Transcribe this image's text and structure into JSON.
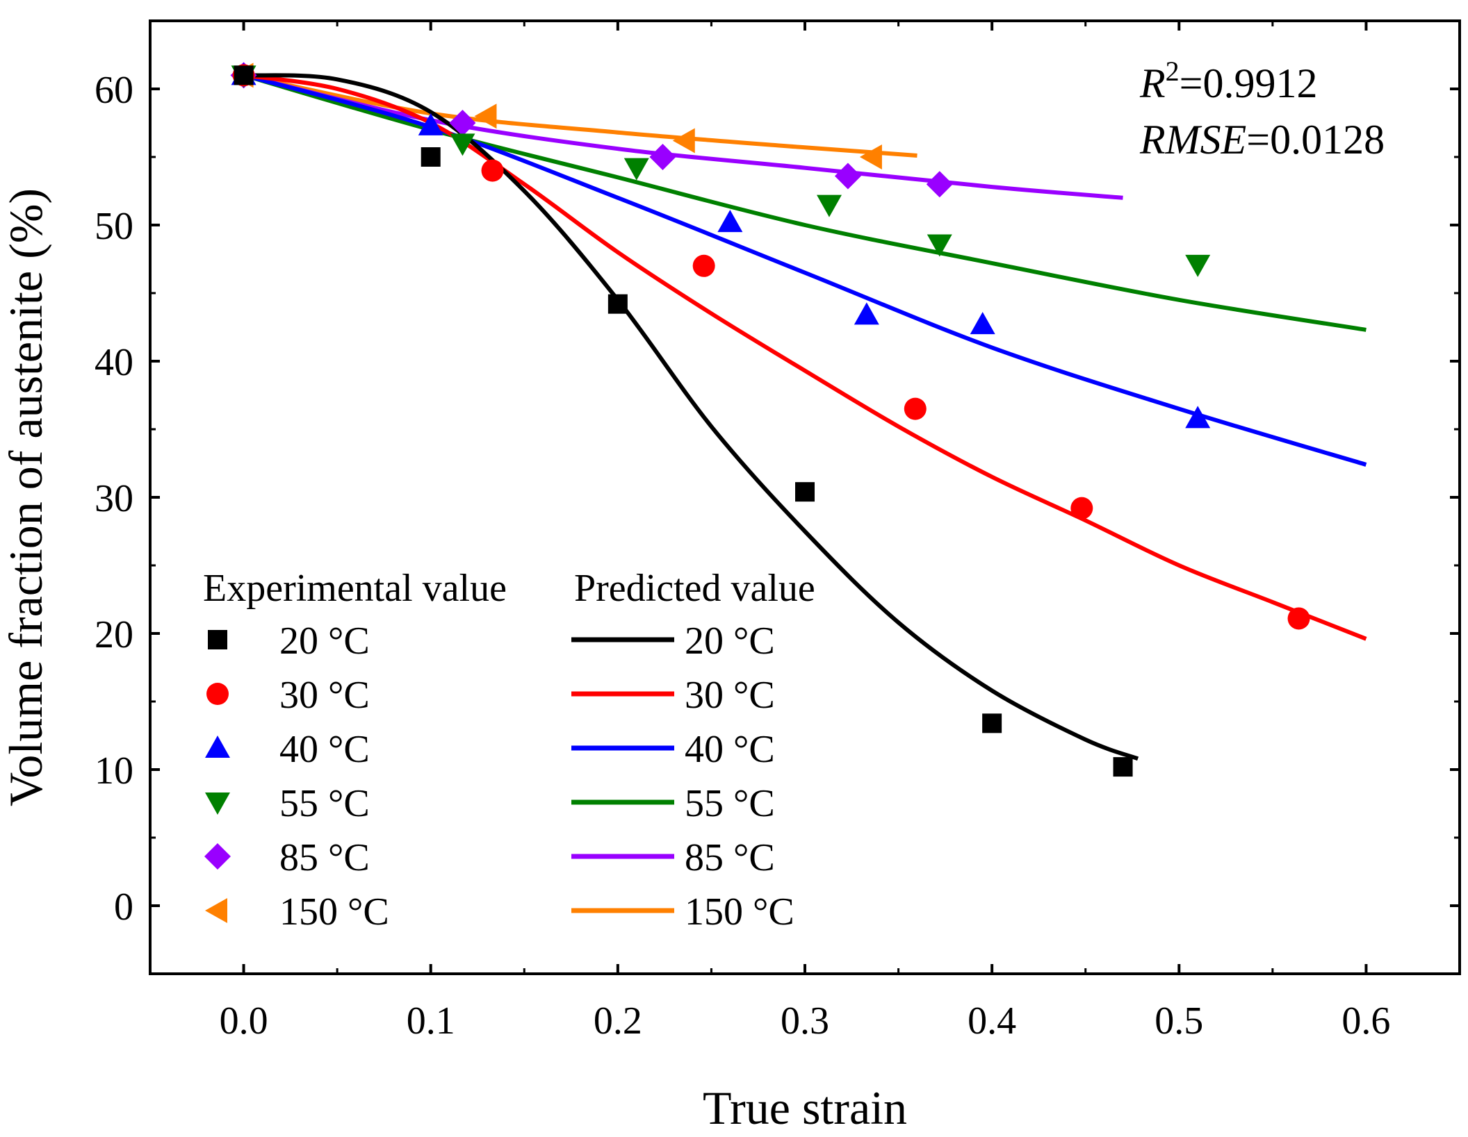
{
  "chart_data": {
    "type": "scatter",
    "xlabel": "True strain",
    "ylabel": "Volume fraction of austenite (%)",
    "xlim": [
      -0.05,
      0.65
    ],
    "ylim": [
      -5,
      65
    ],
    "x_ticks": [
      0.0,
      0.1,
      0.2,
      0.3,
      0.4,
      0.5,
      0.6
    ],
    "x_tick_labels": [
      "0.0",
      "0.1",
      "0.2",
      "0.3",
      "0.4",
      "0.5",
      "0.6"
    ],
    "y_ticks": [
      0,
      10,
      20,
      30,
      40,
      50,
      60
    ],
    "y_tick_labels": [
      "0",
      "10",
      "20",
      "30",
      "40",
      "50",
      "60"
    ],
    "grid": false,
    "legend": {
      "position": "bottom-left",
      "experimental_title": "Experimental value",
      "predicted_title": "Predicted value"
    },
    "stats": {
      "r2_symbol": "R",
      "r2_sup": "2",
      "r2_value": "=0.9912",
      "rmse_symbol": "RMSE",
      "rmse_value": "=0.0128"
    },
    "series": [
      {
        "name": "20 °C",
        "color": "#000000",
        "marker": "square",
        "experimental": [
          [
            0,
            61
          ],
          [
            0.1,
            55
          ],
          [
            0.2,
            44.2
          ],
          [
            0.3,
            30.4
          ],
          [
            0.4,
            13.4
          ],
          [
            0.47,
            10.2
          ]
        ],
        "predicted": [
          [
            0,
            61
          ],
          [
            0.05,
            60.7
          ],
          [
            0.1,
            58.3
          ],
          [
            0.15,
            52.5
          ],
          [
            0.2,
            44.5
          ],
          [
            0.25,
            35.2
          ],
          [
            0.3,
            27.5
          ],
          [
            0.35,
            20.8
          ],
          [
            0.4,
            15.8
          ],
          [
            0.45,
            12.2
          ],
          [
            0.478,
            10.8
          ]
        ]
      },
      {
        "name": "30 °C",
        "color": "#ff0000",
        "marker": "circle",
        "experimental": [
          [
            0,
            61
          ],
          [
            0.133,
            54
          ],
          [
            0.246,
            47
          ],
          [
            0.359,
            36.5
          ],
          [
            0.448,
            29.2
          ],
          [
            0.564,
            21.1
          ]
        ],
        "predicted": [
          [
            0,
            61
          ],
          [
            0.05,
            60
          ],
          [
            0.1,
            57.5
          ],
          [
            0.15,
            53
          ],
          [
            0.2,
            48
          ],
          [
            0.25,
            43.5
          ],
          [
            0.3,
            39.3
          ],
          [
            0.35,
            35.2
          ],
          [
            0.4,
            31.5
          ],
          [
            0.45,
            28.3
          ],
          [
            0.5,
            25
          ],
          [
            0.55,
            22.3
          ],
          [
            0.6,
            19.6
          ]
        ]
      },
      {
        "name": "40 °C",
        "color": "#0000ff",
        "marker": "triangle-up",
        "experimental": [
          [
            0,
            61
          ],
          [
            0.1,
            57.3
          ],
          [
            0.26,
            50.2
          ],
          [
            0.333,
            43.4
          ],
          [
            0.395,
            42.7
          ],
          [
            0.51,
            35.8
          ]
        ],
        "predicted": [
          [
            0,
            61
          ],
          [
            0.1,
            57.2
          ],
          [
            0.2,
            52
          ],
          [
            0.3,
            46.5
          ],
          [
            0.4,
            41
          ],
          [
            0.5,
            36.5
          ],
          [
            0.6,
            32.4
          ]
        ]
      },
      {
        "name": "55 °C",
        "color": "#008000",
        "marker": "triangle-down",
        "experimental": [
          [
            0,
            61
          ],
          [
            0.117,
            56
          ],
          [
            0.21,
            54.2
          ],
          [
            0.313,
            51.5
          ],
          [
            0.372,
            48.6
          ],
          [
            0.51,
            47.1
          ]
        ],
        "predicted": [
          [
            0,
            61
          ],
          [
            0.1,
            57
          ],
          [
            0.2,
            53.5
          ],
          [
            0.3,
            50
          ],
          [
            0.4,
            47.2
          ],
          [
            0.5,
            44.5
          ],
          [
            0.6,
            42.3
          ]
        ]
      },
      {
        "name": "85 °C",
        "color": "#9900ff",
        "marker": "diamond",
        "experimental": [
          [
            0,
            61
          ],
          [
            0.117,
            57.5
          ],
          [
            0.224,
            55
          ],
          [
            0.323,
            53.6
          ],
          [
            0.372,
            53
          ]
        ],
        "predicted": [
          [
            0,
            61
          ],
          [
            0.1,
            57.7
          ],
          [
            0.2,
            55.6
          ],
          [
            0.3,
            54.2
          ],
          [
            0.4,
            52.8
          ],
          [
            0.47,
            52
          ]
        ]
      },
      {
        "name": "150 °C",
        "color": "#ff8000",
        "marker": "triangle-left",
        "experimental": [
          [
            0,
            61
          ],
          [
            0.13,
            58
          ],
          [
            0.236,
            56.2
          ],
          [
            0.336,
            55
          ]
        ],
        "predicted": [
          [
            0,
            61
          ],
          [
            0.1,
            58.2
          ],
          [
            0.2,
            56.8
          ],
          [
            0.3,
            55.7
          ],
          [
            0.36,
            55.1
          ]
        ]
      }
    ]
  }
}
